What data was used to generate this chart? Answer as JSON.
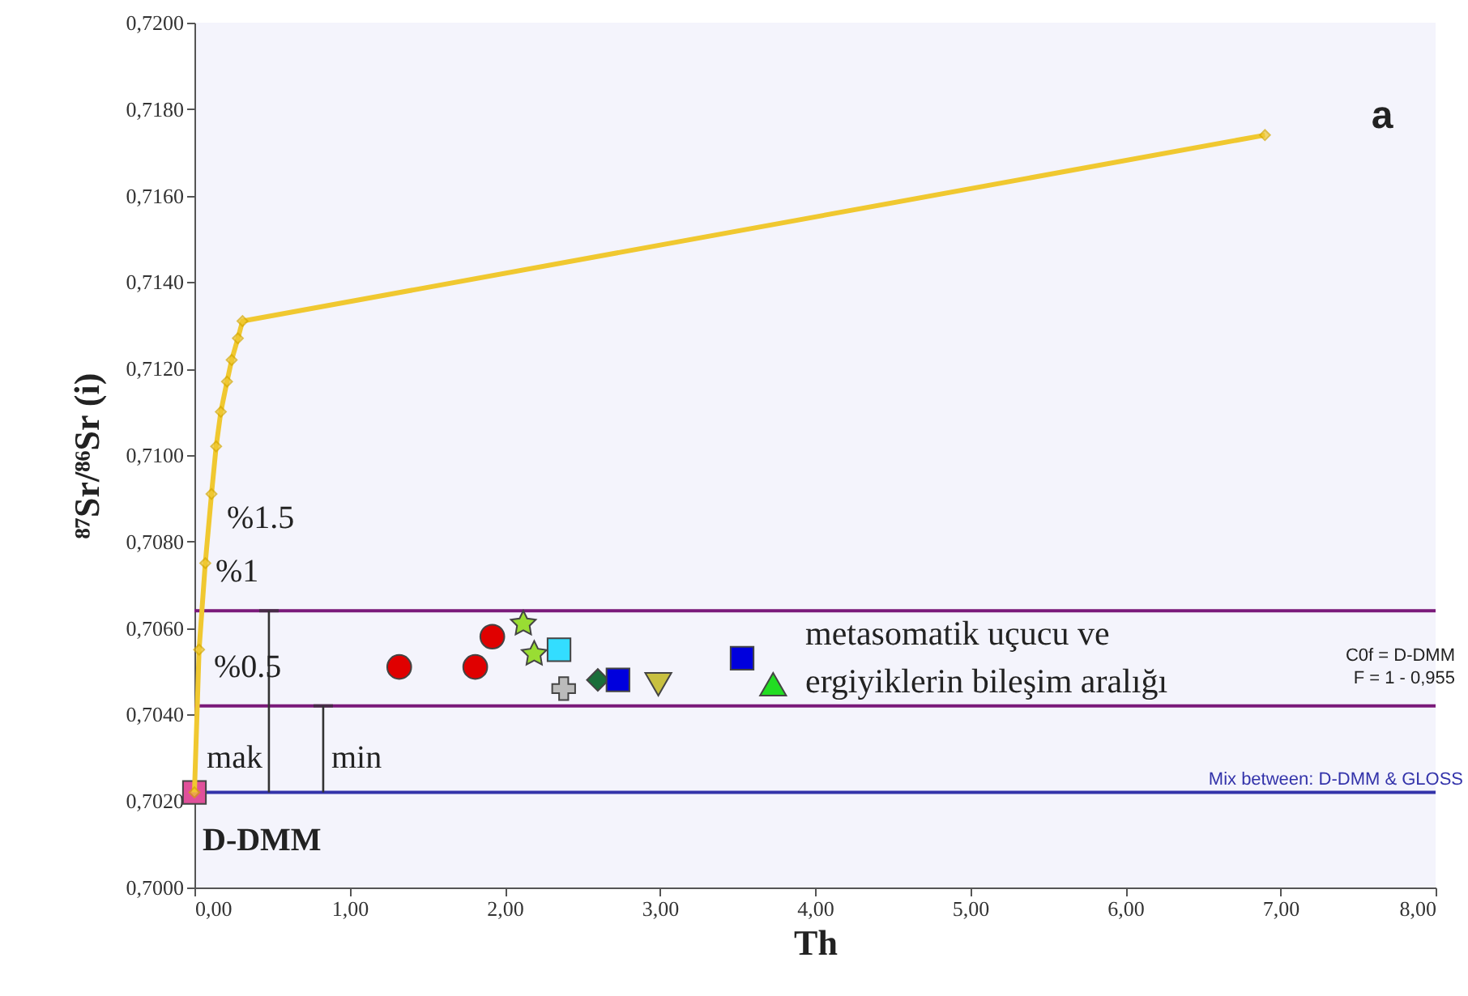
{
  "chart_data": {
    "type": "scatter",
    "xlabel": "Th",
    "ylabel": "⁸⁷Sr/⁸⁶Sr (i)",
    "xlim": [
      0,
      8
    ],
    "ylim": [
      0.7,
      0.72
    ],
    "xticks": [
      {
        "value": 0,
        "label": "0,00"
      },
      {
        "value": 1,
        "label": "1,00"
      },
      {
        "value": 2,
        "label": "2,00"
      },
      {
        "value": 3,
        "label": "3,00"
      },
      {
        "value": 4,
        "label": "4,00"
      },
      {
        "value": 5,
        "label": "5,00"
      },
      {
        "value": 6,
        "label": "6,00"
      },
      {
        "value": 7,
        "label": "7,00"
      },
      {
        "value": 8,
        "label": "8,00"
      }
    ],
    "yticks": [
      {
        "value": 0.7,
        "label": "0,7000"
      },
      {
        "value": 0.702,
        "label": "0,7020"
      },
      {
        "value": 0.704,
        "label": "0,7040"
      },
      {
        "value": 0.706,
        "label": "0,7060"
      },
      {
        "value": 0.708,
        "label": "0,7080"
      },
      {
        "value": 0.71,
        "label": "0,7100"
      },
      {
        "value": 0.712,
        "label": "0,7120"
      },
      {
        "value": 0.714,
        "label": "0,7140"
      },
      {
        "value": 0.716,
        "label": "0,7160"
      },
      {
        "value": 0.718,
        "label": "0,7180"
      },
      {
        "value": 0.72,
        "label": "0,7200"
      }
    ],
    "grid": false,
    "series": [
      {
        "type": "line",
        "marker": "diamond",
        "color": "#f0c830",
        "x": [
          0,
          0.03,
          0.07,
          0.11,
          0.14,
          0.17,
          0.21,
          0.24,
          0.28,
          0.31,
          6.9
        ],
        "values": [
          0.7022,
          0.7055,
          0.7075,
          0.7091,
          0.7102,
          0.711,
          0.7117,
          0.7122,
          0.7127,
          0.7131,
          0.7174
        ]
      },
      {
        "marker": "square",
        "color": "#e0509a",
        "x": [
          0
        ],
        "values": [
          0.7022
        ]
      },
      {
        "marker": "circle",
        "color": "#e00000",
        "x": [
          1.32,
          1.81,
          1.92
        ],
        "values": [
          0.7051,
          0.7051,
          0.7058
        ]
      },
      {
        "marker": "star",
        "color": "#99dd33",
        "x": [
          2.12,
          2.19
        ],
        "values": [
          0.7061,
          0.7054
        ]
      },
      {
        "marker": "square",
        "color": "#33ddff",
        "x": [
          2.35
        ],
        "values": [
          0.7055
        ]
      },
      {
        "marker": "cross",
        "color": "#bbbbbb",
        "x": [
          2.38
        ],
        "values": [
          0.7046
        ]
      },
      {
        "marker": "diamond",
        "color": "#1a6e3a",
        "x": [
          2.6
        ],
        "values": [
          0.7048
        ]
      },
      {
        "marker": "square",
        "color": "#0000dd",
        "x": [
          2.73,
          3.53
        ],
        "values": [
          0.7048,
          0.7053
        ]
      },
      {
        "marker": "triangle-down",
        "color": "#c8c040",
        "x": [
          2.99
        ],
        "values": [
          0.7047
        ]
      },
      {
        "marker": "triangle",
        "color": "#22dd22",
        "x": [
          3.73
        ],
        "values": [
          0.7047
        ]
      }
    ],
    "ref_lines": [
      {
        "axis": "y",
        "value": 0.7064,
        "color": "#7a1a7a"
      },
      {
        "axis": "y",
        "value": 0.7042,
        "color": "#7a1a7a"
      },
      {
        "axis": "y",
        "value": 0.7022,
        "color": "#3333aa",
        "label": "Mix between: D-DMM & GLOSS"
      }
    ],
    "annotations": [
      "%1.5",
      "%1",
      "%0.5",
      {
        "text": "mak",
        "x": 0.48,
        "y": 0.7064
      },
      {
        "text": "min",
        "x": 0.83,
        "y": 0.7042
      },
      "D-DMM",
      "metasomatik uçucu ve\nergiyiklerin bileşim aralığı",
      "C0f = D-DMM\nF = 1 - 0,955",
      "a"
    ]
  }
}
